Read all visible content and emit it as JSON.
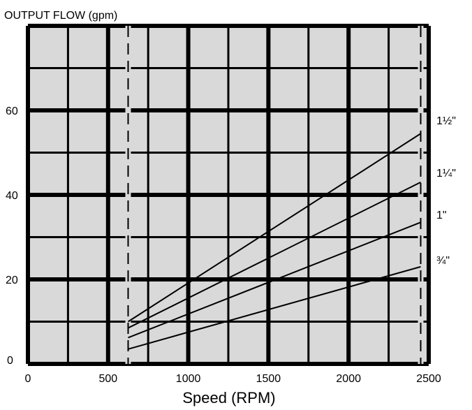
{
  "chart_data": {
    "type": "line",
    "title": "",
    "ylabel": "OUTPUT FLOW (gpm)",
    "xlabel": "Speed (RPM)",
    "xlim": [
      0,
      2500
    ],
    "ylim": [
      0,
      80
    ],
    "xticks": [
      0,
      500,
      1000,
      1500,
      2000,
      2500
    ],
    "xtick_labels": [
      "0",
      "500",
      "1000",
      "1500",
      "2000",
      "2500"
    ],
    "yticks": [
      0,
      20,
      40,
      60
    ],
    "ytick_labels": [
      "0",
      "20",
      "40",
      "60"
    ],
    "grid": true,
    "reference_lines_x": [
      625,
      2450
    ],
    "series": [
      {
        "name": "1½\"",
        "x": [
          625,
          2450
        ],
        "y": [
          10,
          54.5
        ]
      },
      {
        "name": "1¼\"",
        "x": [
          625,
          2450
        ],
        "y": [
          8.5,
          43
        ]
      },
      {
        "name": "1\"",
        "x": [
          625,
          2450
        ],
        "y": [
          6.2,
          33.5
        ]
      },
      {
        "name": "¾\"",
        "x": [
          625,
          2450
        ],
        "y": [
          3.5,
          23
        ]
      }
    ],
    "colors": {
      "plot_background": "#d9d9d9",
      "grid": "#000000",
      "line": "#000000"
    }
  }
}
